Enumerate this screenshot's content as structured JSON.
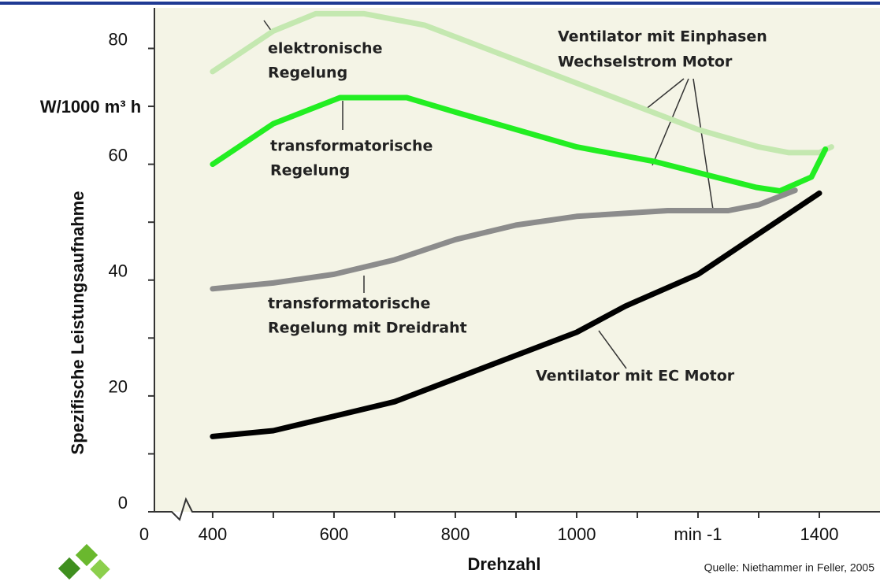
{
  "chart_data": {
    "type": "line",
    "y_label": "Spezifische Leistungsaufnahme",
    "y_unit": "W/1000 m³ h",
    "x_label": "Drehzahl",
    "source": "Quelle: Niethammer in Feller, 2005",
    "xlim": [
      304,
      1500
    ],
    "ylim": [
      0,
      87
    ],
    "axis_break": true,
    "xticks": [
      0,
      400,
      600,
      800,
      1000,
      {
        "value": 1200,
        "label": "min -1"
      },
      1400
    ],
    "xminor_ticks": [
      500,
      700,
      900,
      1100,
      1300
    ],
    "yticks": [
      0,
      20,
      40,
      60,
      80
    ],
    "yminor_ticks": [
      10,
      30,
      50,
      70
    ],
    "series": [
      {
        "label_lines": [
          "elektronische",
          "Regelung"
        ],
        "color": "#c4e8b0",
        "x": [
          400,
          500,
          570,
          650,
          750,
          850,
          1000,
          1100,
          1200,
          1300,
          1350,
          1400,
          1420
        ],
        "values": [
          76,
          83,
          86,
          86,
          84,
          80,
          74,
          70,
          66,
          63,
          62,
          62,
          63
        ]
      },
      {
        "label_lines": [
          "transformatorische",
          "Regelung"
        ],
        "color": "#22ee22",
        "x": [
          400,
          500,
          610,
          720,
          800,
          900,
          1000,
          1127,
          1296,
          1335,
          1387,
          1410
        ],
        "values": [
          60,
          67,
          71.5,
          71.5,
          69,
          66,
          63,
          60.5,
          56,
          55.4,
          57.8,
          62.6
        ]
      },
      {
        "label_lines": [
          "transformatorische",
          "Regelung mit Dreidraht"
        ],
        "color": "#8c8c8c",
        "x": [
          400,
          500,
          600,
          700,
          800,
          900,
          1000,
          1150,
          1250,
          1300,
          1360
        ],
        "values": [
          38.5,
          39.5,
          41,
          43.5,
          47,
          49.5,
          51,
          52,
          52,
          53,
          55.5
        ]
      },
      {
        "label_lines": [
          "Ventilator mit EC Motor"
        ],
        "color": "#000000",
        "x": [
          400,
          500,
          600,
          700,
          800,
          900,
          1000,
          1080,
          1200,
          1300,
          1400
        ],
        "values": [
          13,
          14,
          16.5,
          19,
          23,
          27,
          31,
          35.5,
          41,
          48,
          55
        ]
      }
    ],
    "annotation_lines": [
      "Ventilator mit Einphasen",
      "Wechselstrom Motor"
    ]
  }
}
